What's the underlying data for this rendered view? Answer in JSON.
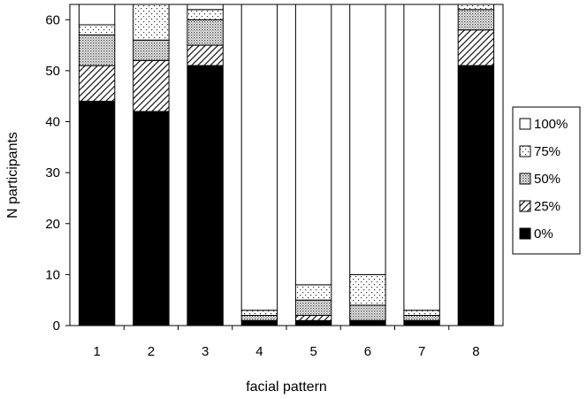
{
  "chart_data": {
    "type": "bar",
    "stacked": true,
    "categories": [
      "1",
      "2",
      "3",
      "4",
      "5",
      "6",
      "7",
      "8"
    ],
    "series": [
      {
        "name": "0%",
        "values": [
          44,
          42,
          51,
          1,
          1,
          1,
          1,
          51
        ],
        "pattern": "solid-black"
      },
      {
        "name": "25%",
        "values": [
          7,
          10,
          4,
          0,
          1,
          0,
          0,
          7
        ],
        "pattern": "diagonal-hatch"
      },
      {
        "name": "50%",
        "values": [
          6,
          4,
          5,
          1,
          3,
          3,
          1,
          4
        ],
        "pattern": "dense-dots"
      },
      {
        "name": "75%",
        "values": [
          2,
          7,
          2,
          1,
          3,
          6,
          1,
          1
        ],
        "pattern": "sparse-dots"
      },
      {
        "name": "100%",
        "values": [
          4,
          0,
          1,
          60,
          55,
          53,
          60,
          0
        ],
        "pattern": "white"
      }
    ],
    "xlabel": "facial pattern",
    "ylabel": "N participants",
    "ylim": [
      0,
      63
    ],
    "yticks": [
      0,
      10,
      20,
      30,
      40,
      50,
      60
    ],
    "grid": false,
    "legend": {
      "position": "right",
      "order": [
        "100%",
        "75%",
        "50%",
        "25%",
        "0%"
      ]
    }
  }
}
